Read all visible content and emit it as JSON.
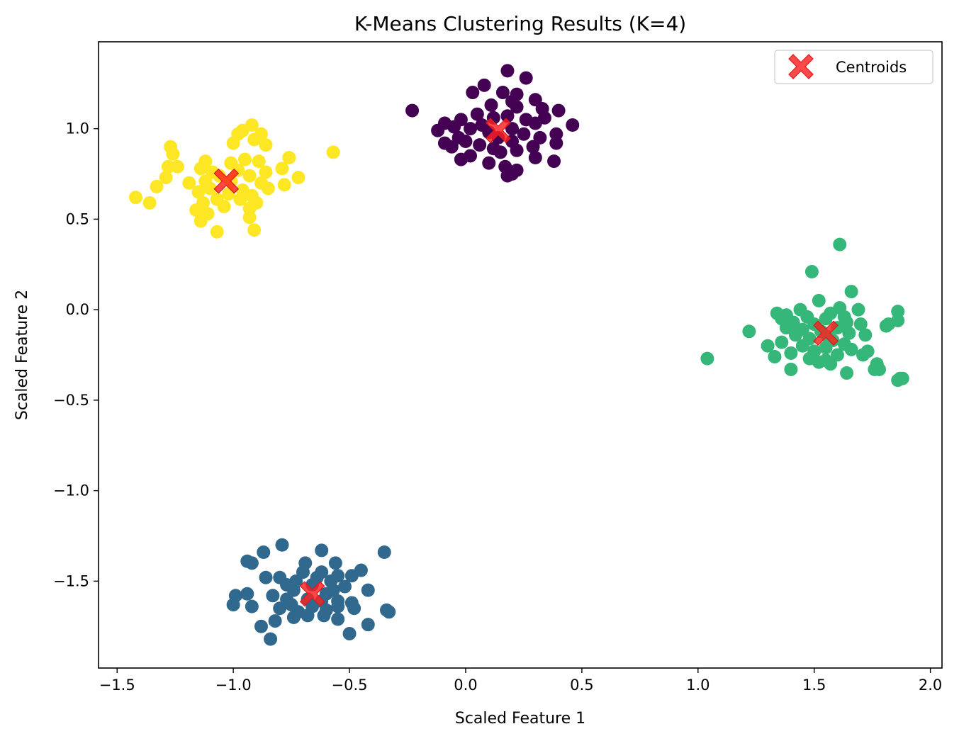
{
  "chart_data": {
    "type": "scatter",
    "title": "K-Means Clustering Results (K=4)",
    "xlabel": "Scaled Feature 1",
    "ylabel": "Scaled Feature 2",
    "xlim": [
      -1.58,
      2.05
    ],
    "ylim": [
      -1.98,
      1.48
    ],
    "xticks": [
      -1.5,
      -1.0,
      -0.5,
      0.0,
      0.5,
      1.0,
      1.5,
      2.0
    ],
    "xtick_labels": [
      "−1.5",
      "−1.0",
      "−0.5",
      "0.0",
      "0.5",
      "1.0",
      "1.5",
      "2.0"
    ],
    "yticks": [
      -1.5,
      -1.0,
      -0.5,
      0.0,
      0.5,
      1.0
    ],
    "ytick_labels": [
      "−1.5",
      "−1.0",
      "−0.5",
      "0.0",
      "0.5",
      "1.0"
    ],
    "grid": false,
    "legend_position": "upper right",
    "legend": [
      {
        "label": "Centroids",
        "color": "#ff2020",
        "marker": "X"
      }
    ],
    "centroid_color": "#ff2020",
    "series": [
      {
        "cluster": 0,
        "color": "#440154",
        "points": [
          [
            0.18,
            1.32
          ],
          [
            0.26,
            1.28
          ],
          [
            0.08,
            1.24
          ],
          [
            0.03,
            1.2
          ],
          [
            0.16,
            1.2
          ],
          [
            0.22,
            1.19
          ],
          [
            0.2,
            1.15
          ],
          [
            0.3,
            1.16
          ],
          [
            0.11,
            1.13
          ],
          [
            0.22,
            1.12
          ],
          [
            0.33,
            1.11
          ],
          [
            0.4,
            1.1
          ],
          [
            -0.23,
            1.1
          ],
          [
            0.05,
            1.08
          ],
          [
            0.18,
            1.07
          ],
          [
            -0.02,
            1.05
          ],
          [
            0.12,
            1.06
          ],
          [
            0.26,
            1.05
          ],
          [
            0.34,
            1.06
          ],
          [
            -0.09,
            1.03
          ],
          [
            0.07,
            1.02
          ],
          [
            0.3,
            1.03
          ],
          [
            0.46,
            1.02
          ],
          [
            -0.05,
            1.01
          ],
          [
            0.02,
            1.0
          ],
          [
            0.2,
            1.0
          ],
          [
            -0.12,
            0.99
          ],
          [
            0.1,
            0.98
          ],
          [
            0.25,
            0.97
          ],
          [
            0.39,
            0.97
          ],
          [
            -0.03,
            0.95
          ],
          [
            0.14,
            0.95
          ],
          [
            0.32,
            0.95
          ],
          [
            0.0,
            0.93
          ],
          [
            0.2,
            0.93
          ],
          [
            -0.09,
            0.92
          ],
          [
            0.06,
            0.91
          ],
          [
            0.39,
            0.92
          ],
          [
            -0.06,
            0.9
          ],
          [
            0.12,
            0.89
          ],
          [
            0.29,
            0.9
          ],
          [
            0.22,
            0.88
          ],
          [
            0.15,
            0.87
          ],
          [
            0.02,
            0.85
          ],
          [
            0.3,
            0.84
          ],
          [
            -0.02,
            0.83
          ],
          [
            0.1,
            0.81
          ],
          [
            0.38,
            0.82
          ],
          [
            0.17,
            0.79
          ],
          [
            0.22,
            0.77
          ],
          [
            0.18,
            0.74
          ],
          [
            0.2,
            0.75
          ]
        ]
      },
      {
        "cluster": 1,
        "color": "#31688e",
        "points": [
          [
            -0.62,
            -1.33
          ],
          [
            -0.35,
            -1.34
          ],
          [
            -0.87,
            -1.34
          ],
          [
            -0.79,
            -1.3
          ],
          [
            -0.56,
            -1.4
          ],
          [
            -0.94,
            -1.39
          ],
          [
            -0.92,
            -1.4
          ],
          [
            -0.69,
            -1.4
          ],
          [
            -0.7,
            -1.45
          ],
          [
            -0.62,
            -1.45
          ],
          [
            -0.45,
            -1.44
          ],
          [
            -0.49,
            -1.47
          ],
          [
            -0.55,
            -1.47
          ],
          [
            -0.8,
            -1.48
          ],
          [
            -0.86,
            -1.48
          ],
          [
            -0.64,
            -1.48
          ],
          [
            -0.73,
            -1.5
          ],
          [
            -0.58,
            -1.5
          ],
          [
            -0.77,
            -1.52
          ],
          [
            -0.66,
            -1.52
          ],
          [
            -0.52,
            -1.53
          ],
          [
            -0.74,
            -1.55
          ],
          [
            -0.57,
            -1.55
          ],
          [
            -0.6,
            -1.57
          ],
          [
            -0.83,
            -1.58
          ],
          [
            -0.42,
            -1.55
          ],
          [
            -0.94,
            -1.57
          ],
          [
            -0.99,
            -1.58
          ],
          [
            -0.68,
            -1.6
          ],
          [
            -0.77,
            -1.6
          ],
          [
            -0.55,
            -1.61
          ],
          [
            -0.62,
            -1.61
          ],
          [
            -0.75,
            -1.63
          ],
          [
            -0.49,
            -1.62
          ],
          [
            -0.55,
            -1.64
          ],
          [
            -0.8,
            -1.65
          ],
          [
            -0.66,
            -1.64
          ],
          [
            -0.6,
            -1.66
          ],
          [
            -1.0,
            -1.63
          ],
          [
            -0.92,
            -1.64
          ],
          [
            -0.48,
            -1.65
          ],
          [
            -0.72,
            -1.67
          ],
          [
            -0.34,
            -1.66
          ],
          [
            -0.33,
            -1.67
          ],
          [
            -0.68,
            -1.69
          ],
          [
            -0.61,
            -1.69
          ],
          [
            -0.74,
            -1.7
          ],
          [
            -0.55,
            -1.71
          ],
          [
            -0.82,
            -1.72
          ],
          [
            -0.42,
            -1.74
          ],
          [
            -0.88,
            -1.75
          ],
          [
            -0.5,
            -1.79
          ],
          [
            -0.84,
            -1.82
          ]
        ]
      },
      {
        "cluster": 2,
        "color": "#35b779",
        "points": [
          [
            1.61,
            0.36
          ],
          [
            1.49,
            0.21
          ],
          [
            1.66,
            0.1
          ],
          [
            1.52,
            0.05
          ],
          [
            1.61,
            0.01
          ],
          [
            1.69,
            0.0
          ],
          [
            1.44,
            0.0
          ],
          [
            1.86,
            -0.01
          ],
          [
            1.34,
            -0.02
          ],
          [
            1.57,
            -0.02
          ],
          [
            1.38,
            -0.03
          ],
          [
            1.63,
            -0.04
          ],
          [
            1.47,
            -0.04
          ],
          [
            1.36,
            -0.05
          ],
          [
            1.55,
            -0.05
          ],
          [
            1.86,
            -0.06
          ],
          [
            1.41,
            -0.07
          ],
          [
            1.64,
            -0.07
          ],
          [
            1.5,
            -0.08
          ],
          [
            1.7,
            -0.08
          ],
          [
            1.81,
            -0.09
          ],
          [
            1.82,
            -0.08
          ],
          [
            1.38,
            -0.1
          ],
          [
            1.6,
            -0.1
          ],
          [
            1.45,
            -0.11
          ],
          [
            1.53,
            -0.12
          ],
          [
            1.22,
            -0.12
          ],
          [
            1.65,
            -0.13
          ],
          [
            1.42,
            -0.14
          ],
          [
            1.56,
            -0.15
          ],
          [
            1.72,
            -0.14
          ],
          [
            1.48,
            -0.16
          ],
          [
            1.58,
            -0.17
          ],
          [
            1.36,
            -0.18
          ],
          [
            1.63,
            -0.19
          ],
          [
            1.45,
            -0.2
          ],
          [
            1.3,
            -0.2
          ],
          [
            1.55,
            -0.21
          ],
          [
            1.66,
            -0.22
          ],
          [
            1.5,
            -0.23
          ],
          [
            1.4,
            -0.24
          ],
          [
            1.73,
            -0.23
          ],
          [
            1.6,
            -0.25
          ],
          [
            1.71,
            -0.25
          ],
          [
            1.33,
            -0.26
          ],
          [
            1.48,
            -0.27
          ],
          [
            1.04,
            -0.27
          ],
          [
            1.55,
            -0.28
          ],
          [
            1.52,
            -0.29
          ],
          [
            1.77,
            -0.3
          ],
          [
            1.57,
            -0.3
          ],
          [
            1.76,
            -0.33
          ],
          [
            1.78,
            -0.33
          ],
          [
            1.4,
            -0.33
          ],
          [
            1.64,
            -0.35
          ],
          [
            1.87,
            -0.38
          ],
          [
            1.86,
            -0.39
          ],
          [
            1.88,
            -0.38
          ]
        ]
      },
      {
        "cluster": 3,
        "color": "#fde725",
        "points": [
          [
            -0.92,
            1.02
          ],
          [
            -0.96,
            0.99
          ],
          [
            -0.98,
            0.97
          ],
          [
            -0.88,
            0.97
          ],
          [
            -0.91,
            0.94
          ],
          [
            -1.0,
            0.92
          ],
          [
            -0.86,
            0.91
          ],
          [
            -0.57,
            0.87
          ],
          [
            -1.27,
            0.9
          ],
          [
            -1.26,
            0.86
          ],
          [
            -0.95,
            0.83
          ],
          [
            -0.89,
            0.82
          ],
          [
            -0.76,
            0.84
          ],
          [
            -1.12,
            0.82
          ],
          [
            -1.01,
            0.81
          ],
          [
            -1.28,
            0.79
          ],
          [
            -1.24,
            0.79
          ],
          [
            -1.14,
            0.78
          ],
          [
            -0.79,
            0.78
          ],
          [
            -0.98,
            0.77
          ],
          [
            -0.86,
            0.76
          ],
          [
            -1.09,
            0.76
          ],
          [
            -1.06,
            0.74
          ],
          [
            -0.93,
            0.74
          ],
          [
            -0.72,
            0.73
          ],
          [
            -1.29,
            0.73
          ],
          [
            -1.12,
            0.71
          ],
          [
            -1.01,
            0.71
          ],
          [
            -0.88,
            0.7
          ],
          [
            -1.19,
            0.7
          ],
          [
            -0.78,
            0.69
          ],
          [
            -1.33,
            0.68
          ],
          [
            -1.1,
            0.67
          ],
          [
            -0.96,
            0.66
          ],
          [
            -0.85,
            0.67
          ],
          [
            -1.15,
            0.65
          ],
          [
            -1.02,
            0.64
          ],
          [
            -0.92,
            0.63
          ],
          [
            -1.42,
            0.62
          ],
          [
            -1.07,
            0.61
          ],
          [
            -0.97,
            0.61
          ],
          [
            -1.13,
            0.59
          ],
          [
            -0.9,
            0.59
          ],
          [
            -1.36,
            0.59
          ],
          [
            -1.04,
            0.57
          ],
          [
            -0.93,
            0.56
          ],
          [
            -1.16,
            0.55
          ],
          [
            -1.11,
            0.53
          ],
          [
            -0.93,
            0.51
          ],
          [
            -1.14,
            0.49
          ],
          [
            -0.91,
            0.44
          ],
          [
            -1.07,
            0.43
          ]
        ]
      }
    ],
    "centroids": [
      [
        0.14,
        0.99
      ],
      [
        -0.66,
        -1.57
      ],
      [
        1.55,
        -0.13
      ],
      [
        -1.03,
        0.71
      ]
    ]
  }
}
